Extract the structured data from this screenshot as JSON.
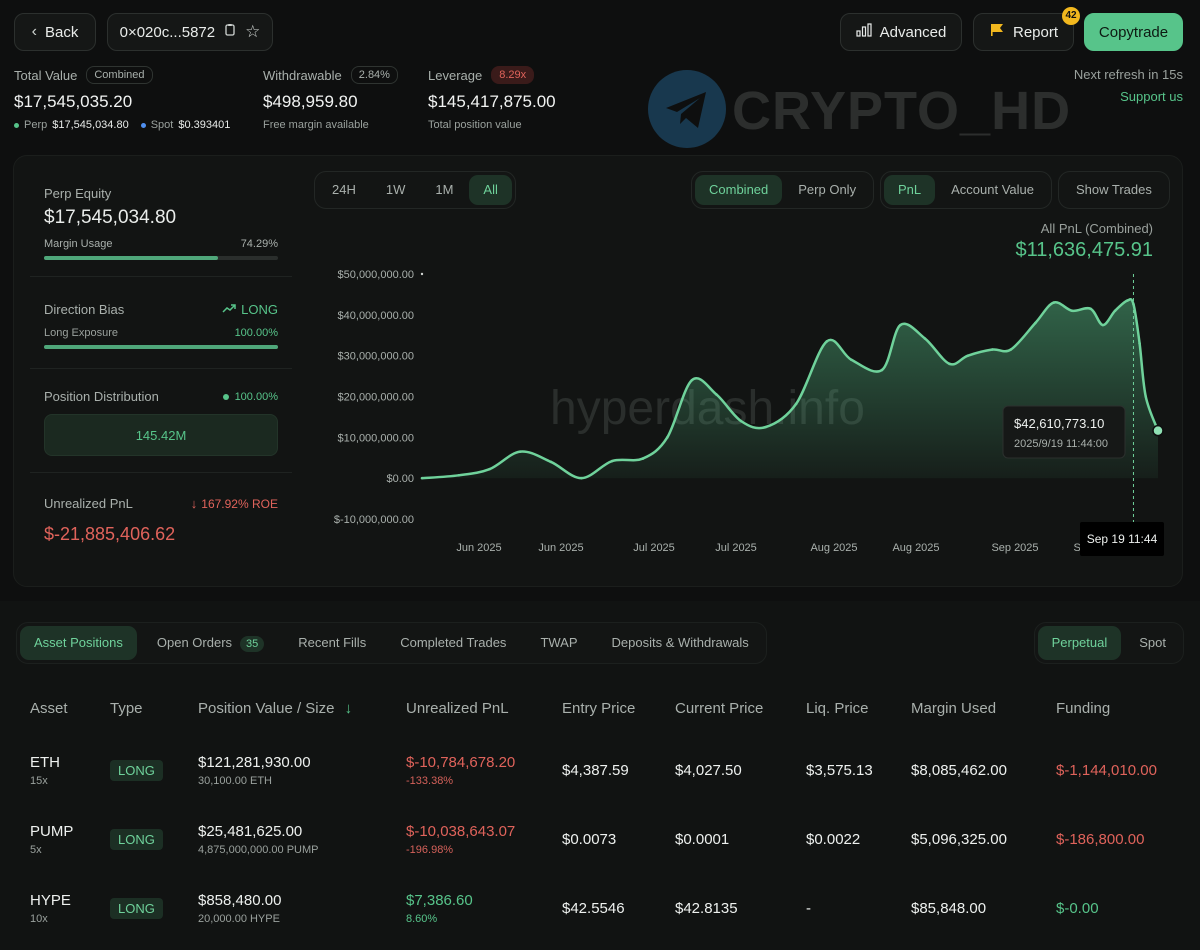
{
  "header": {
    "back_label": "Back",
    "address": "0×020c...5872",
    "advanced_label": "Advanced",
    "report_label": "Report",
    "report_badge": "42",
    "copytrade_label": "Copytrade",
    "refresh_text": "Next refresh in 15s",
    "support_label": "Support us",
    "watermark": "CRYPTO_HD"
  },
  "stats": {
    "total_value": {
      "label": "Total Value",
      "chip": "Combined",
      "value": "$17,545,035.20",
      "perp_label": "Perp",
      "perp_value": "$17,545,034.80",
      "spot_label": "Spot",
      "spot_value": "$0.393401"
    },
    "withdrawable": {
      "label": "Withdrawable",
      "chip": "2.84%",
      "value": "$498,959.80",
      "sub": "Free margin available"
    },
    "leverage": {
      "label": "Leverage",
      "chip": "8.29x",
      "value": "$145,417,875.00",
      "sub": "Total position value"
    }
  },
  "left": {
    "equity_label": "Perp Equity",
    "equity_value": "$17,545,034.80",
    "margin_label": "Margin Usage",
    "margin_pct": "74.29%",
    "margin_fill": 0.7429,
    "bias_label": "Direction Bias",
    "bias_value": "LONG",
    "exposure_label": "Long Exposure",
    "exposure_pct": "100.00%",
    "exposure_fill": 1.0,
    "dist_label": "Position Distribution",
    "dist_pct": "100.00%",
    "dist_value": "145.42M",
    "upnl_label": "Unrealized PnL",
    "upnl_roe": "167.92% ROE",
    "upnl_value": "$-21,885,406.62"
  },
  "controls": {
    "time": [
      "24H",
      "1W",
      "1M",
      "All"
    ],
    "time_active": 3,
    "mode": [
      "Combined",
      "Perp Only"
    ],
    "mode_active": 0,
    "metric": [
      "PnL",
      "Account Value"
    ],
    "metric_active": 0,
    "show_trades": "Show Trades"
  },
  "chart_data": {
    "type": "area",
    "title": "All PnL (Combined)",
    "headline_value": "$11,636,475.91",
    "y_ticks": [
      "$50,000,000.00",
      "$40,000,000.00",
      "$30,000,000.00",
      "$20,000,000.00",
      "$10,000,000.00",
      "$0.00",
      "$-10,000,000.00"
    ],
    "ylim": [
      -10000000,
      50000000
    ],
    "x_ticks": [
      "Jun 2025",
      "Jun 2025",
      "Jul 2025",
      "Jul 2025",
      "Aug 2025",
      "Aug 2025",
      "Sep 2025",
      "Sep 2025"
    ],
    "x": [
      "2025-05-25",
      "2025-05-31",
      "2025-06-05",
      "2025-06-10",
      "2025-06-15",
      "2025-06-20",
      "2025-06-25",
      "2025-06-30",
      "2025-07-04",
      "2025-07-08",
      "2025-07-12",
      "2025-07-16",
      "2025-07-20",
      "2025-07-25",
      "2025-07-30",
      "2025-08-03",
      "2025-08-08",
      "2025-08-11",
      "2025-08-15",
      "2025-08-19",
      "2025-08-22",
      "2025-08-26",
      "2025-08-29",
      "2025-09-02",
      "2025-09-05",
      "2025-09-08",
      "2025-09-11",
      "2025-09-13",
      "2025-09-15",
      "2025-09-17",
      "2025-09-18",
      "2025-09-19",
      "2025-09-20",
      "2025-09-22"
    ],
    "values": [
      0,
      700000,
      2200000,
      6500000,
      4000000,
      0,
      4200000,
      4800000,
      10000000,
      24000000,
      20500000,
      14000000,
      12500000,
      18200000,
      33500000,
      29000000,
      26500000,
      37500000,
      34200000,
      28000000,
      30000000,
      31500000,
      31500000,
      38000000,
      43000000,
      41000000,
      41500000,
      37500000,
      41000000,
      43500000,
      42610773.1,
      33000000,
      20000000,
      11636475.91
    ],
    "tooltip": {
      "value": "$42,610,773.10",
      "date": "2025/9/19 11:44:00",
      "cursor_label": "Sep 19 11:44"
    },
    "chart_watermark": "hyperdash.info"
  },
  "tabs": {
    "items": [
      "Asset Positions",
      "Open Orders",
      "Recent Fills",
      "Completed Trades",
      "TWAP",
      "Deposits & Withdrawals"
    ],
    "open_orders_badge": "35",
    "active": 0,
    "market": [
      "Perpetual",
      "Spot"
    ],
    "market_active": 0
  },
  "table": {
    "columns": [
      "Asset",
      "Type",
      "Position Value / Size",
      "Unrealized PnL",
      "Entry Price",
      "Current Price",
      "Liq. Price",
      "Margin Used",
      "Funding"
    ],
    "rows": [
      {
        "asset": "ETH",
        "lev": "15x",
        "type": "LONG",
        "value": "$121,281,930.00",
        "size": "30,100.00 ETH",
        "upnl": "$-10,784,678.20",
        "upnl_pct": "-133.38%",
        "entry": "$4,387.59",
        "current": "$4,027.50",
        "liq": "$3,575.13",
        "margin": "$8,085,462.00",
        "funding": "$-1,144,010.00"
      },
      {
        "asset": "PUMP",
        "lev": "5x",
        "type": "LONG",
        "value": "$25,481,625.00",
        "size": "4,875,000,000.00 PUMP",
        "upnl": "$-10,038,643.07",
        "upnl_pct": "-196.98%",
        "entry": "$0.0073",
        "current": "$0.0001",
        "liq": "$0.0022",
        "margin": "$5,096,325.00",
        "funding": "$-186,800.00"
      },
      {
        "asset": "HYPE",
        "lev": "10x",
        "type": "LONG",
        "value": "$858,480.00",
        "size": "20,000.00 HYPE",
        "upnl": "$7,386.60",
        "upnl_pct": "8.60%",
        "entry": "$42.5546",
        "current": "$42.8135",
        "liq": "-",
        "margin": "$85,848.00",
        "funding": "$-0.00"
      }
    ]
  },
  "colors": {
    "accent": "#57c48a",
    "negative": "#e0635b",
    "background": "#0e0f0f"
  }
}
